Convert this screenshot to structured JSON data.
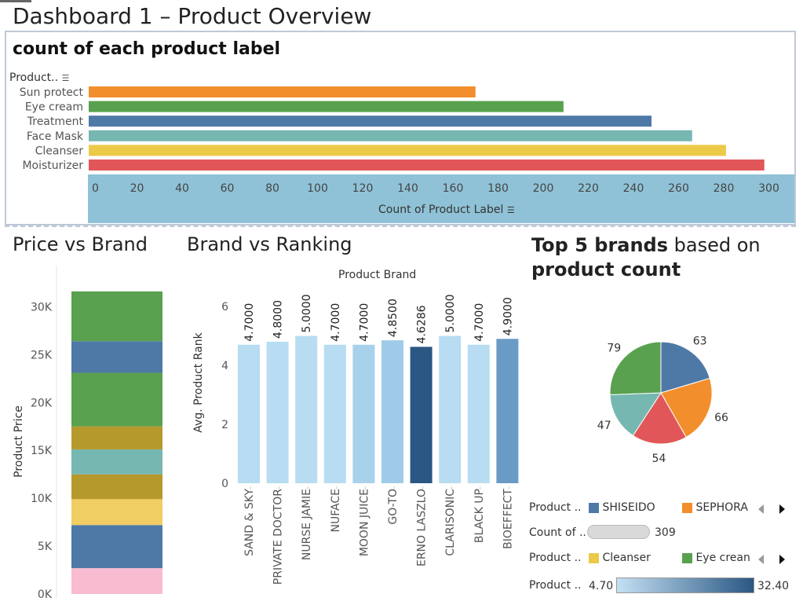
{
  "dashboard_title": "Dashboard 1 – Product Overview",
  "sheets": {
    "label_count_title": "count of each product label",
    "label_count_row_header": "Product..",
    "label_count_axis_title": "Count of Product Label",
    "price_title": "Price vs Brand",
    "price_axis_title": "Product Price",
    "ranking_title": "Brand vs Ranking",
    "ranking_header": "Product Brand",
    "ranking_axis_title": "Avg. Product Rank",
    "top5_title_bold1": "Top 5 brands",
    "top5_title_normal": " based on",
    "top5_title_bold2": "product count"
  },
  "legends": {
    "brand_label": "Product ..",
    "brand_items": [
      {
        "name": "SHISEIDO",
        "color": "#4e79a7"
      },
      {
        "name": "SEPHORA",
        "color": "#f28e2b"
      }
    ],
    "count_label": "Count of ..",
    "count_value": "309",
    "label_label": "Product ..",
    "label_items": [
      {
        "name": "Cleanser",
        "color": "#edc948"
      },
      {
        "name": "Eye crean",
        "color": "#59a14f"
      }
    ],
    "rank_label": "Product ..",
    "rank_min": "4.70",
    "rank_max": "32.40"
  },
  "chart_data": [
    {
      "type": "bar",
      "orientation": "horizontal",
      "title": "count of each product label",
      "categories": [
        "Sun protect",
        "Eye cream",
        "Treatment",
        "Face Mask",
        "Cleanser",
        "Moisturizer"
      ],
      "values": [
        170,
        209,
        248,
        266,
        281,
        298
      ],
      "colors": [
        "#f28e2b",
        "#59a14f",
        "#4e79a7",
        "#76b7b2",
        "#edc948",
        "#e15759"
      ],
      "xlabel": "Count of Product Label",
      "xlim": [
        0,
        310
      ],
      "xticks": [
        "0",
        "20",
        "40",
        "60",
        "80",
        "100",
        "120",
        "140",
        "160",
        "180",
        "200",
        "220",
        "240",
        "260",
        "280",
        "300"
      ]
    },
    {
      "type": "bar",
      "stacked": true,
      "title": "Price vs Brand",
      "ylabel": "Product Price",
      "ylim": [
        0,
        32000
      ],
      "yticks": [
        "0K",
        "5K",
        "10K",
        "15K",
        "20K",
        "25K",
        "30K"
      ],
      "segments": [
        {
          "value": 2700,
          "color": "#f8bbd0"
        },
        {
          "value": 4500,
          "color": "#4e79a7"
        },
        {
          "value": 2700,
          "color": "#f1ce63"
        },
        {
          "value": 2600,
          "color": "#b6992d"
        },
        {
          "value": 2600,
          "color": "#76b7b2"
        },
        {
          "value": 2400,
          "color": "#b6992d"
        },
        {
          "value": 5600,
          "color": "#59a14f"
        },
        {
          "value": 3300,
          "color": "#4e79a7"
        },
        {
          "value": 5200,
          "color": "#59a14f"
        }
      ]
    },
    {
      "type": "bar",
      "title": "Brand vs Ranking",
      "header": "Product Brand",
      "ylabel": "Avg. Product Rank",
      "ylim": [
        0,
        6.5
      ],
      "yticks": [
        "0",
        "2",
        "4",
        "6"
      ],
      "categories": [
        "SAND & SKY",
        "PRIVATE DOCTOR",
        "NURSE JAMIE",
        "NUFACE",
        "MOON JUICE",
        "GO-TO",
        "ERNO LASZLO",
        "CLARISONIC",
        "BLACK UP",
        "BIOEFFECT"
      ],
      "values": [
        4.7,
        4.8,
        5.0,
        4.7,
        4.7,
        4.85,
        4.6286,
        5.0,
        4.7,
        4.9
      ],
      "labels": [
        "4.7000",
        "4.8000",
        "5.0000",
        "4.7000",
        "4.7000",
        "4.8500",
        "4.6286",
        "5.0000",
        "4.7000",
        "4.9000"
      ],
      "colors": [
        "#b8dcf1",
        "#b8dcf1",
        "#b8dcf1",
        "#b8dcf1",
        "#a8d1ec",
        "#9fcbe8",
        "#2a5783",
        "#b8dcf1",
        "#b8dcf1",
        "#6a9bc6"
      ]
    },
    {
      "type": "pie",
      "title": "Top 5 brands based on product count",
      "values": [
        63,
        66,
        54,
        47,
        79
      ],
      "labels": [
        "63",
        "66",
        "54",
        "47",
        "79"
      ],
      "colors": [
        "#4e79a7",
        "#f28e2b",
        "#e15759",
        "#76b7b2",
        "#59a14f"
      ]
    }
  ]
}
